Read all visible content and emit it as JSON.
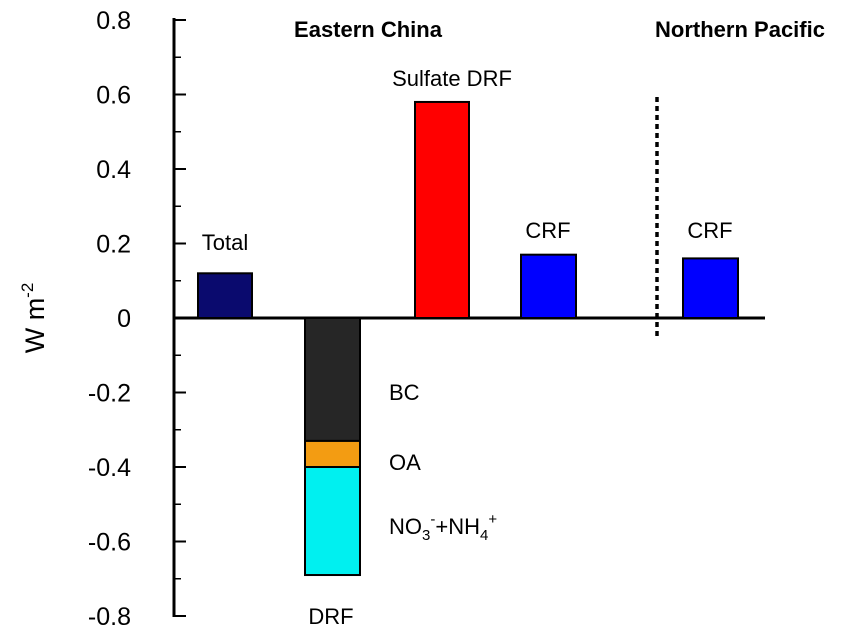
{
  "chart_data": {
    "type": "bar",
    "ylabel_main": "W m",
    "ylabel_sup": "-2",
    "ylim": [
      -0.8,
      0.8
    ],
    "yticks": [
      {
        "value": 0.8,
        "label": "0.8"
      },
      {
        "value": 0.6,
        "label": "0.6"
      },
      {
        "value": 0.4,
        "label": "0.4"
      },
      {
        "value": 0.2,
        "label": "0.2"
      },
      {
        "value": 0.0,
        "label": "0"
      },
      {
        "value": -0.2,
        "label": "-0.2"
      },
      {
        "value": -0.4,
        "label": "-0.4"
      },
      {
        "value": -0.6,
        "label": "-0.6"
      },
      {
        "value": -0.8,
        "label": "-0.8"
      }
    ],
    "panels": [
      {
        "title": "Eastern China"
      },
      {
        "title": "Northern Pacific"
      }
    ],
    "bars": [
      {
        "id": "total",
        "label": "Total",
        "value": 0.12,
        "color": "#0a0a6e"
      },
      {
        "id": "drf",
        "label": "DRF",
        "stacked": true,
        "segments": [
          {
            "id": "bc",
            "label": "BC",
            "from": 0.0,
            "to": -0.33,
            "color": "#262626"
          },
          {
            "id": "oa",
            "label": "OA",
            "from": -0.33,
            "to": -0.4,
            "color": "#f39c12"
          },
          {
            "id": "no3nh4",
            "label": "NO3-+NH4+",
            "from": -0.4,
            "to": -0.69,
            "color": "#00f0f0"
          }
        ]
      },
      {
        "id": "sulfate",
        "label": "Sulfate DRF",
        "value": 0.58,
        "color": "#ff0000"
      },
      {
        "id": "crf-ec",
        "label": "CRF",
        "value": 0.17,
        "color": "#0000ff"
      },
      {
        "id": "crf-np",
        "label": "CRF",
        "value": 0.16,
        "color": "#0000ff"
      }
    ],
    "legend": "none",
    "grid": false
  }
}
